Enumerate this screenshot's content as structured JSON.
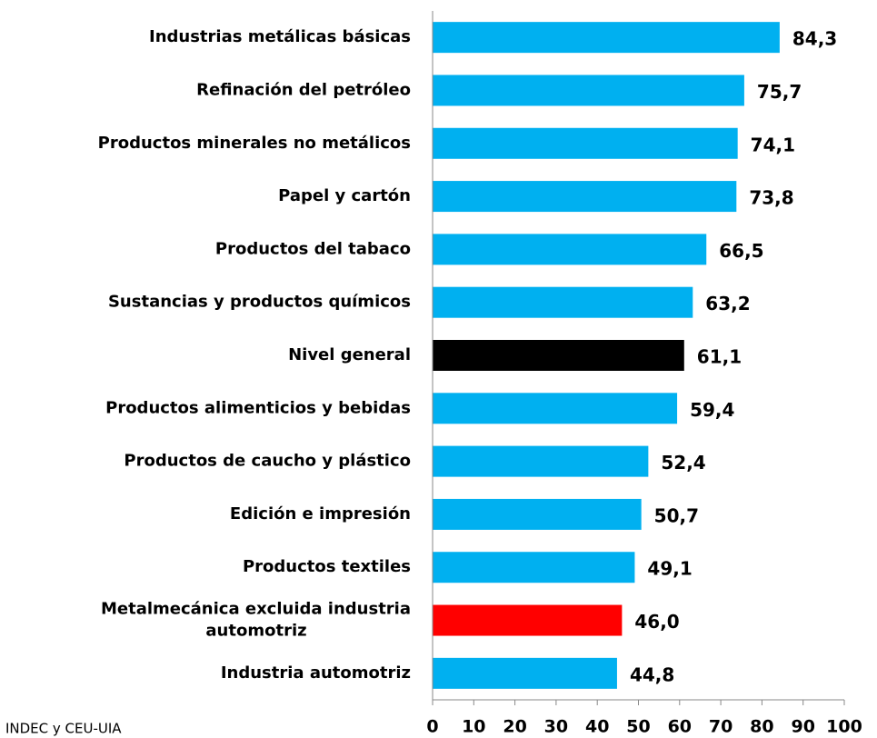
{
  "chart_data": {
    "type": "barh",
    "categories": [
      "Industrias metálicas básicas",
      "Refinación del petróleo",
      "Productos minerales no metálicos",
      "Papel y cartón",
      "Productos del tabaco",
      "Sustancias y productos químicos",
      "Nivel general",
      "Productos alimenticios y bebidas",
      "Productos de caucho y plástico",
      "Edición e impresión",
      "Productos textiles",
      "Metalmecánica excluida industria automotriz",
      "Industria automotriz"
    ],
    "values": [
      84.3,
      75.7,
      74.1,
      73.8,
      66.5,
      63.2,
      61.1,
      59.4,
      52.4,
      50.7,
      49.1,
      46.0,
      44.8
    ],
    "value_labels": [
      "84,3",
      "75,7",
      "74,1",
      "73,8",
      "66,5",
      "63,2",
      "61,1",
      "59,4",
      "52,4",
      "50,7",
      "49,1",
      "46,0",
      "44,8"
    ],
    "colors": [
      "#00b0f0",
      "#00b0f0",
      "#00b0f0",
      "#00b0f0",
      "#00b0f0",
      "#00b0f0",
      "#000000",
      "#00b0f0",
      "#00b0f0",
      "#00b0f0",
      "#00b0f0",
      "#ff0000",
      "#00b0f0"
    ],
    "xlim": [
      0,
      100
    ],
    "xticks": [
      0,
      10,
      20,
      30,
      40,
      50,
      60,
      70,
      80,
      90,
      100
    ],
    "source": "Fuente: INDEC y CEU-UIA"
  }
}
